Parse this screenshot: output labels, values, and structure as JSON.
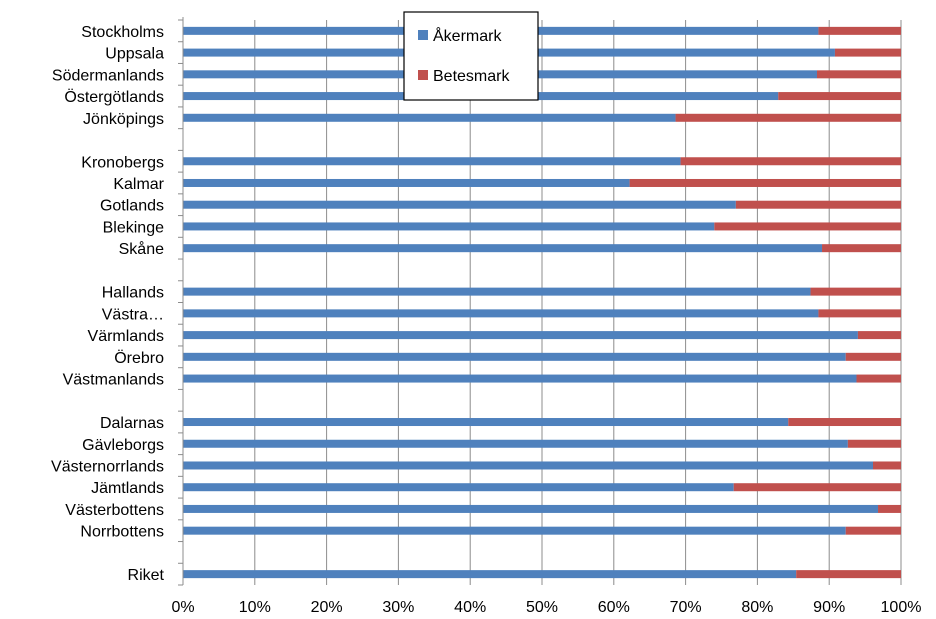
{
  "chart_data": {
    "type": "bar",
    "orientation": "horizontal",
    "stacked": true,
    "percent": true,
    "categories": [
      "Stockholms",
      "Uppsala",
      "Södermanlands",
      "Östergötlands",
      "Jönköpings",
      "",
      "Kronobergs",
      "Kalmar",
      "Gotlands",
      "Blekinge",
      "Skåne",
      "",
      "Hallands",
      "Västra…",
      "Värmlands",
      "Örebro",
      "Västmanlands",
      "",
      "Dalarnas",
      "Gävleborgs",
      "Västernorrlands",
      "Jämtlands",
      "Västerbottens",
      "Norrbottens",
      "",
      "Riket"
    ],
    "series": [
      {
        "name": "Åkermark",
        "color": "#4F81BD",
        "values": [
          88.5,
          90.8,
          88.3,
          82.9,
          68.6,
          null,
          69.3,
          62.2,
          77.0,
          74.0,
          89.0,
          null,
          87.4,
          88.5,
          94.0,
          92.3,
          93.8,
          null,
          84.3,
          92.6,
          96.1,
          76.7,
          96.8,
          92.3,
          null,
          85.4
        ]
      },
      {
        "name": "Betesmark",
        "color": "#C0504D",
        "values": [
          11.5,
          9.2,
          11.7,
          17.1,
          31.4,
          null,
          30.7,
          37.8,
          23.0,
          26.0,
          11.0,
          null,
          12.6,
          11.5,
          6.0,
          7.7,
          6.2,
          null,
          15.7,
          7.4,
          3.9,
          23.3,
          3.2,
          7.7,
          null,
          14.6
        ]
      }
    ],
    "x_ticks": [
      "0%",
      "10%",
      "20%",
      "30%",
      "40%",
      "50%",
      "60%",
      "70%",
      "80%",
      "90%",
      "100%"
    ],
    "xlim": [
      0,
      100
    ],
    "grid": true,
    "legend_position": "top-center"
  }
}
